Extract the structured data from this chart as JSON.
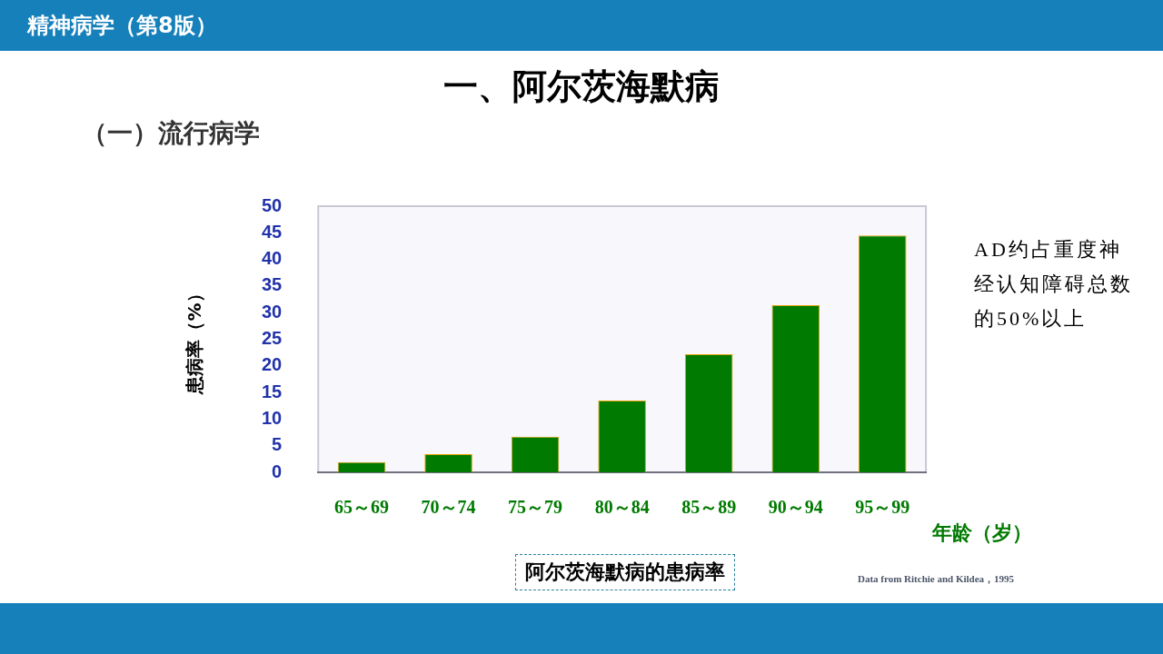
{
  "chart_data": {
    "type": "bar",
    "title": "一、阿尔茨海默病",
    "subtitle": "（一）流行病学",
    "xlabel": "年龄（岁）",
    "ylabel": "患病率（%）",
    "categories": [
      "65～69",
      "70～74",
      "75～79",
      "80～84",
      "85～89",
      "90～94",
      "95～99"
    ],
    "values": [
      1.9,
      3.4,
      6.7,
      13.5,
      22.2,
      31.4,
      44.5
    ],
    "color": "#007a00",
    "ylim": [
      0,
      50
    ],
    "yticks": [
      0,
      5,
      10,
      15,
      20,
      25,
      30,
      35,
      40,
      45,
      50
    ],
    "grid": false,
    "legend": false,
    "annotations": [
      "精神病学（第8版）",
      "阿尔茨海默病的患病率",
      "AD约占重度神经认知障碍总数的50%以上",
      "Data from Ritchie and Kildea，1995"
    ]
  }
}
